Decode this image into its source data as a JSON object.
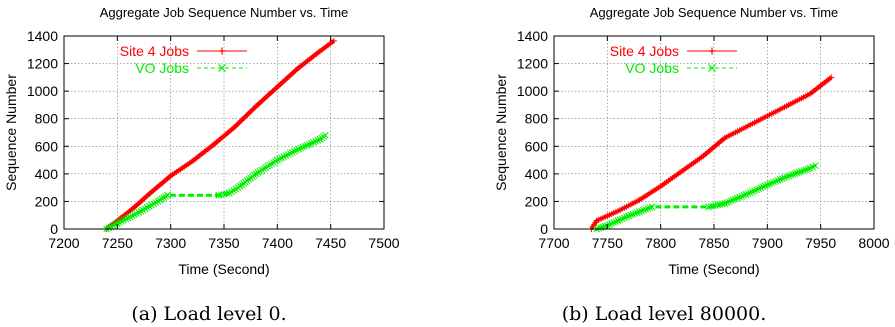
{
  "chart_data": [
    {
      "type": "line",
      "title": "Aggregate Job Sequence Number vs. Time",
      "xlabel": "Time (Second)",
      "ylabel": "Sequence Number",
      "xlim": [
        7200,
        7500
      ],
      "ylim": [
        0,
        1400
      ],
      "xticks": [
        "7200",
        "7250",
        "7300",
        "7350",
        "7400",
        "7450",
        "7500"
      ],
      "yticks": [
        "0",
        "200",
        "400",
        "600",
        "800",
        "1000",
        "1200",
        "1400"
      ],
      "grid": true,
      "legend_position": "top-left",
      "caption": "(a) Load level 0.",
      "series": [
        {
          "name": "Site 4 Jobs",
          "color": "#ff0000",
          "marker": "plus",
          "x": [
            7240,
            7250,
            7260,
            7270,
            7280,
            7290,
            7300,
            7320,
            7340,
            7360,
            7380,
            7400,
            7420,
            7440,
            7453
          ],
          "y": [
            0,
            60,
            120,
            185,
            255,
            320,
            385,
            490,
            610,
            740,
            890,
            1030,
            1170,
            1290,
            1365
          ]
        },
        {
          "name": "VO Jobs",
          "color": "#00ee00",
          "marker": "cross",
          "x": [
            7240,
            7250,
            7260,
            7270,
            7280,
            7290,
            7297,
            7345,
            7355,
            7365,
            7380,
            7400,
            7420,
            7440,
            7445
          ],
          "y": [
            0,
            40,
            80,
            120,
            165,
            210,
            245,
            245,
            260,
            310,
            400,
            500,
            580,
            650,
            680
          ]
        }
      ]
    },
    {
      "type": "line",
      "title": "Aggregate Job Sequence Number vs. Time",
      "xlabel": "Time (Second)",
      "ylabel": "Sequence Number",
      "xlim": [
        7700,
        8000
      ],
      "ylim": [
        0,
        1400
      ],
      "xticks": [
        "7700",
        "7750",
        "7800",
        "7850",
        "7900",
        "7950",
        "8000"
      ],
      "yticks": [
        "0",
        "200",
        "400",
        "600",
        "800",
        "1000",
        "1200",
        "1400"
      ],
      "grid": true,
      "legend_position": "top-left",
      "caption": "(b) Load level 80000.",
      "series": [
        {
          "name": "Site 4 Jobs",
          "color": "#ff0000",
          "marker": "plus",
          "x": [
            7735,
            7740,
            7760,
            7780,
            7800,
            7820,
            7840,
            7860,
            7880,
            7900,
            7920,
            7940,
            7950,
            7960
          ],
          "y": [
            0,
            60,
            130,
            210,
            310,
            420,
            530,
            660,
            740,
            820,
            900,
            980,
            1040,
            1100
          ]
        },
        {
          "name": "VO Jobs",
          "color": "#00ee00",
          "marker": "cross",
          "x": [
            7740,
            7750,
            7760,
            7770,
            7780,
            7792,
            7845,
            7860,
            7880,
            7900,
            7920,
            7940,
            7945
          ],
          "y": [
            0,
            25,
            60,
            95,
            125,
            160,
            160,
            185,
            250,
            320,
            385,
            440,
            460
          ]
        }
      ]
    }
  ]
}
